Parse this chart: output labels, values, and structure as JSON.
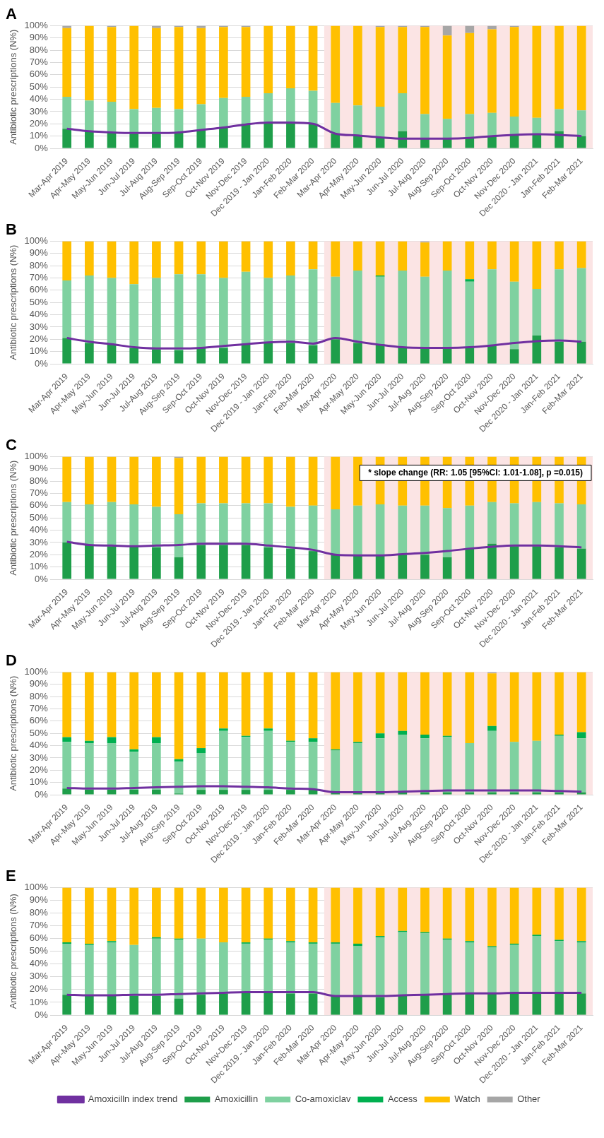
{
  "chart_data": [
    {
      "type": "bar",
      "title": "A",
      "ylabel": "Antibiotic prescriptions (N%)",
      "stacked": true,
      "grid": "y",
      "legend": false,
      "marker": "none",
      "categories": [
        "Mar-Apr 2019",
        "Apr-May 2019",
        "May-Jun 2019",
        "Jun-Jul 2019",
        "Jul-Aug 2019",
        "Aug-Sep 2019",
        "Sep-Oct 2019",
        "Oct-Nov 2019",
        "Nov-Dec 2019",
        "Dec 2019 - Jan 2020",
        "Jan-Feb 2020",
        "Feb-Mar 2020",
        "Mar-Apr 2020",
        "Apr-May 2020",
        "May-Jun 2020",
        "Jun-Jul 2020",
        "Jul-Aug 2020",
        "Aug-Sep 2020",
        "Sep-Oct 2020",
        "Oct-Nov 2020",
        "Nov-Dec 2020",
        "Dec 2020 - Jan 2021",
        "Jan-Feb 2021",
        "Feb-Mar 2021"
      ],
      "ylim": [
        0,
        100
      ],
      "yticks": [
        {
          "value": 0,
          "label": "0%"
        },
        {
          "value": 10,
          "label": "10%"
        },
        {
          "value": 20,
          "label": "20%"
        },
        {
          "value": 30,
          "label": "30%"
        },
        {
          "value": 40,
          "label": "40%"
        },
        {
          "value": 50,
          "label": "50%"
        },
        {
          "value": 60,
          "label": "60%"
        },
        {
          "value": 70,
          "label": "70%"
        },
        {
          "value": 80,
          "label": "80%"
        },
        {
          "value": 90,
          "label": "90%"
        },
        {
          "value": 100,
          "label": "100%"
        }
      ],
      "bands": [
        {
          "axis": "x",
          "from": "Mar-Apr 2020",
          "to": "Feb-Mar 2021",
          "color": "#fbe4e4"
        }
      ],
      "series": [
        {
          "color": "#1e9e4a",
          "values": [
            16,
            14,
            13,
            12,
            12,
            13,
            15,
            17,
            20,
            21,
            21,
            20,
            12,
            10,
            9,
            14,
            8,
            8,
            9,
            10,
            11,
            12,
            14,
            10
          ]
        },
        {
          "color": "#7fd1a0",
          "values": [
            26,
            25,
            25,
            20,
            21,
            19,
            21,
            24,
            22,
            24,
            28,
            27,
            25,
            25,
            25,
            31,
            20,
            16,
            19,
            19,
            15,
            13,
            18,
            21
          ]
        },
        {
          "color": "#ffc000",
          "values": [
            56,
            61,
            61,
            68,
            65,
            67,
            62,
            58,
            57,
            55,
            51,
            53,
            63,
            65,
            65,
            54,
            71,
            68,
            66,
            68,
            73,
            75,
            68,
            69
          ]
        },
        {
          "color": "#a6a6a6",
          "values": [
            2,
            0,
            1,
            0,
            2,
            1,
            2,
            1,
            1,
            0,
            0,
            0,
            0,
            0,
            1,
            1,
            1,
            8,
            6,
            3,
            1,
            0,
            0,
            0
          ]
        },
        {
          "type": "line",
          "color": "#7030a0",
          "values": [
            16,
            14,
            13,
            12.5,
            12.5,
            13,
            15,
            17,
            19.5,
            21,
            21,
            20,
            12,
            10.5,
            9,
            8,
            8,
            8,
            8.5,
            10,
            11,
            11.5,
            11,
            10
          ]
        }
      ]
    },
    {
      "type": "bar",
      "title": "B",
      "ylabel": "Antibiotic prescriptions (N%)",
      "stacked": true,
      "grid": "y",
      "legend": false,
      "marker": "none",
      "categories": [
        "Mar-Apr 2019",
        "Apr-May 2019",
        "May-Jun 2019",
        "Jun-Jul 2019",
        "Jul-Aug 2019",
        "Aug-Sep 2019",
        "Sep-Oct 2019",
        "Oct-Nov 2019",
        "Nov-Dec 2019",
        "Dec 2019 - Jan 2020",
        "Jan-Feb 2020",
        "Feb-Mar 2020",
        "Mar-Apr 2020",
        "Apr-May 2020",
        "May-Jun 2020",
        "Jun-Jul 2020",
        "Jul-Aug 2020",
        "Aug-Sep 2020",
        "Sep-Oct 2020",
        "Oct-Nov 2020",
        "Nov-Dec 2020",
        "Dec 2020 - Jan 2021",
        "Jan-Feb 2021",
        "Feb-Mar 2021"
      ],
      "ylim": [
        0,
        100
      ],
      "yticks": [
        {
          "value": 0,
          "label": "0%"
        },
        {
          "value": 10,
          "label": "10%"
        },
        {
          "value": 20,
          "label": "20%"
        },
        {
          "value": 30,
          "label": "30%"
        },
        {
          "value": 40,
          "label": "40%"
        },
        {
          "value": 50,
          "label": "50%"
        },
        {
          "value": 60,
          "label": "60%"
        },
        {
          "value": 70,
          "label": "70%"
        },
        {
          "value": 80,
          "label": "80%"
        },
        {
          "value": 90,
          "label": "90%"
        },
        {
          "value": 100,
          "label": "100%"
        }
      ],
      "bands": [
        {
          "axis": "x",
          "from": "Mar-Apr 2020",
          "to": "Feb-Mar 2021",
          "color": "#fbe4e4"
        }
      ],
      "series": [
        {
          "color": "#1e9e4a",
          "values": [
            21,
            17,
            16,
            13,
            12,
            11,
            13,
            13,
            16,
            17,
            17,
            15,
            20,
            17,
            16,
            14,
            13,
            13,
            13,
            15,
            12,
            23,
            18,
            18
          ]
        },
        {
          "color": "#7fd1a0",
          "values": [
            47,
            55,
            54,
            52,
            58,
            62,
            60,
            57,
            59,
            53,
            55,
            62,
            51,
            59,
            55,
            62,
            58,
            63,
            54,
            62,
            55,
            38,
            59,
            60
          ]
        },
        {
          "color": "#00b050",
          "values": [
            0,
            0,
            0,
            0,
            0,
            0,
            0,
            0,
            0,
            0,
            0,
            0,
            0,
            0,
            1,
            0,
            0,
            0,
            2,
            0,
            0,
            0,
            0,
            0
          ]
        },
        {
          "color": "#ffc000",
          "values": [
            32,
            28,
            30,
            35,
            30,
            27,
            27,
            30,
            25,
            30,
            28,
            23,
            29,
            24,
            28,
            24,
            28,
            24,
            31,
            23,
            33,
            39,
            23,
            22
          ]
        },
        {
          "color": "#a6a6a6",
          "values": [
            0,
            0,
            0,
            0,
            0,
            0,
            0,
            0,
            0,
            0,
            0,
            0,
            0,
            0,
            0,
            0,
            1,
            0,
            0,
            0,
            0,
            0,
            0,
            0
          ]
        },
        {
          "type": "line",
          "color": "#7030a0",
          "values": [
            21,
            18,
            16,
            13.5,
            12.5,
            12.5,
            13,
            14.5,
            16,
            17.5,
            18,
            16.5,
            21,
            18,
            15.5,
            13.5,
            13,
            13,
            13.5,
            15,
            17,
            18.5,
            19,
            18
          ]
        }
      ]
    },
    {
      "type": "bar",
      "title": "C",
      "ylabel": "Antibiotic prescriptions (N%)",
      "stacked": true,
      "grid": "y",
      "legend": false,
      "marker": "none",
      "categories": [
        "Mar-Apr 2019",
        "Apr-May 2019",
        "May-Jun 2019",
        "Jun-Jul 2019",
        "Jul-Aug 2019",
        "Aug-Sep 2019",
        "Sep-Oct 2019",
        "Oct-Nov 2019",
        "Nov-Dec 2019",
        "Dec 2019 - Jan 2020",
        "Jan-Feb 2020",
        "Feb-Mar 2020",
        "Mar-Apr 2020",
        "Apr-May 2020",
        "May-Jun 2020",
        "Jun-Jul 2020",
        "Jul-Aug 2020",
        "Aug-Sep 2020",
        "Sep-Oct 2020",
        "Oct-Nov 2020",
        "Nov-Dec 2020",
        "Dec 2020 - Jan 2021",
        "Jan-Feb 2021",
        "Feb-Mar 2021"
      ],
      "ylim": [
        0,
        100
      ],
      "yticks": [
        {
          "value": 0,
          "label": "0%"
        },
        {
          "value": 10,
          "label": "10%"
        },
        {
          "value": 20,
          "label": "20%"
        },
        {
          "value": 30,
          "label": "30%"
        },
        {
          "value": 40,
          "label": "40%"
        },
        {
          "value": 50,
          "label": "50%"
        },
        {
          "value": 60,
          "label": "60%"
        },
        {
          "value": 70,
          "label": "70%"
        },
        {
          "value": 80,
          "label": "80%"
        },
        {
          "value": 90,
          "label": "90%"
        },
        {
          "value": 100,
          "label": "100%"
        }
      ],
      "bands": [
        {
          "axis": "x",
          "from": "Mar-Apr 2020",
          "to": "Feb-Mar 2021",
          "color": "#fbe4e4"
        }
      ],
      "annotations": [
        "* slope change (RR: 1.05 [95%CI: 1.01-1.08], p =0.015)"
      ],
      "series": [
        {
          "color": "#1e9e4a",
          "values": [
            30,
            28,
            27,
            27,
            26,
            18,
            28,
            28,
            28,
            26,
            25,
            23,
            20,
            20,
            20,
            20,
            20,
            18,
            25,
            29,
            27,
            27,
            26,
            25
          ]
        },
        {
          "color": "#7fd1a0",
          "values": [
            33,
            33,
            36,
            34,
            33,
            35,
            34,
            34,
            34,
            36,
            34,
            37,
            37,
            40,
            41,
            40,
            40,
            40,
            35,
            34,
            35,
            36,
            36,
            36
          ]
        },
        {
          "color": "#ffc000",
          "values": [
            37,
            39,
            37,
            39,
            41,
            46,
            38,
            38,
            38,
            38,
            41,
            40,
            43,
            40,
            39,
            40,
            40,
            42,
            40,
            37,
            38,
            37,
            38,
            39
          ]
        },
        {
          "color": "#a6a6a6",
          "values": [
            0,
            0,
            0,
            0,
            0,
            1,
            0,
            0,
            0,
            0,
            0,
            0,
            0,
            0,
            0,
            0,
            0,
            0,
            0,
            0,
            0,
            0,
            0,
            0
          ]
        },
        {
          "type": "line",
          "color": "#7030a0",
          "values": [
            30.5,
            28,
            27.5,
            27,
            27.5,
            28,
            29,
            29,
            29,
            27.5,
            26,
            24,
            20,
            19.5,
            19.5,
            20.5,
            21.5,
            23,
            25,
            26.5,
            27.5,
            27.5,
            27,
            26
          ]
        }
      ]
    },
    {
      "type": "bar",
      "title": "D",
      "ylabel": "Antibiotic prescriptions (N%)",
      "stacked": true,
      "grid": "y",
      "legend": false,
      "marker": "none",
      "categories": [
        "Mar-Apr 2019",
        "Apr-May 2019",
        "May-Jun 2019",
        "Jun-Jul 2019",
        "Jul-Aug 2019",
        "Aug-Sep 2019",
        "Sep-Oct 2019",
        "Oct-Nov 2019",
        "Nov-Dec 2019",
        "Dec 2019 - Jan 2020",
        "Jan-Feb 2020",
        "Feb-Mar 2020",
        "Mar-Apr 2020",
        "Apr-May 2020",
        "May-Jun 2020",
        "Jun-Jul 2020",
        "Jul-Aug 2020",
        "Aug-Sep 2020",
        "Sep-Oct 2020",
        "Oct-Nov 2020",
        "Nov-Dec 2020",
        "Dec 2020 - Jan 2021",
        "Jan-Feb 2021",
        "Feb-Mar 2021"
      ],
      "ylim": [
        0,
        100
      ],
      "yticks": [
        {
          "value": 0,
          "label": "0%"
        },
        {
          "value": 10,
          "label": "10%"
        },
        {
          "value": 20,
          "label": "20%"
        },
        {
          "value": 30,
          "label": "30%"
        },
        {
          "value": 40,
          "label": "40%"
        },
        {
          "value": 50,
          "label": "50%"
        },
        {
          "value": 60,
          "label": "60%"
        },
        {
          "value": 70,
          "label": "70%"
        },
        {
          "value": 80,
          "label": "80%"
        },
        {
          "value": 90,
          "label": "90%"
        },
        {
          "value": 100,
          "label": "100%"
        }
      ],
      "bands": [
        {
          "axis": "x",
          "from": "Mar-Apr 2020",
          "to": "Feb-Mar 2021",
          "color": "#fbe4e4"
        }
      ],
      "series": [
        {
          "color": "#1e9e4a",
          "values": [
            5,
            4,
            4,
            4,
            4,
            1,
            4,
            4,
            4,
            4,
            4,
            4,
            2,
            2,
            2,
            2,
            2,
            2,
            2,
            2,
            2,
            2,
            2,
            2
          ]
        },
        {
          "color": "#7fd1a0",
          "values": [
            38,
            38,
            38,
            31,
            38,
            26,
            30,
            48,
            43,
            48,
            39,
            39,
            34,
            40,
            44,
            47,
            44,
            45,
            40,
            50,
            41,
            42,
            46,
            44
          ]
        },
        {
          "color": "#00b050",
          "values": [
            4,
            2,
            5,
            2,
            5,
            2,
            4,
            2,
            1,
            2,
            1,
            3,
            1,
            1,
            4,
            3,
            3,
            1,
            0,
            4,
            0,
            0,
            1,
            5
          ]
        },
        {
          "color": "#ffc000",
          "values": [
            53,
            56,
            53,
            63,
            53,
            71,
            62,
            46,
            52,
            46,
            56,
            54,
            63,
            57,
            50,
            48,
            51,
            52,
            58,
            43,
            57,
            56,
            51,
            49
          ]
        },
        {
          "color": "#a6a6a6",
          "values": [
            0,
            0,
            0,
            0,
            0,
            0,
            0,
            0,
            0,
            0,
            0,
            0,
            0,
            0,
            0,
            0,
            0,
            0,
            0,
            1,
            0,
            0,
            0,
            0
          ]
        },
        {
          "type": "line",
          "color": "#7030a0",
          "values": [
            5.5,
            5,
            5,
            5.5,
            6,
            6.5,
            7,
            7,
            6.5,
            6,
            5,
            4.5,
            2,
            2,
            2,
            2.5,
            3,
            3.5,
            3.5,
            3.5,
            3.5,
            3.5,
            3,
            2.5
          ]
        }
      ]
    },
    {
      "type": "bar",
      "title": "E",
      "ylabel": "Antibiotic prescriptions (N%)",
      "stacked": true,
      "grid": "y",
      "legend": "bottom",
      "marker": "none",
      "categories": [
        "Mar-Apr 2019",
        "Apr-May 2019",
        "May-Jun 2019",
        "Jun-Jul 2019",
        "Jul-Aug 2019",
        "Aug-Sep 2019",
        "Sep-Oct 2019",
        "Oct-Nov 2019",
        "Nov-Dec 2019",
        "Dec 2019 - Jan 2020",
        "Jan-Feb 2020",
        "Feb-Mar 2020",
        "Mar-Apr 2020",
        "Apr-May 2020",
        "May-Jun 2020",
        "Jun-Jul 2020",
        "Jul-Aug 2020",
        "Aug-Sep 2020",
        "Sep-Oct 2020",
        "Oct-Nov 2020",
        "Nov-Dec 2020",
        "Dec 2020 - Jan 2021",
        "Jan-Feb 2021",
        "Feb-Mar 2021"
      ],
      "ylim": [
        0,
        100
      ],
      "yticks": [
        {
          "value": 0,
          "label": "0%"
        },
        {
          "value": 10,
          "label": "10%"
        },
        {
          "value": 20,
          "label": "20%"
        },
        {
          "value": 30,
          "label": "30%"
        },
        {
          "value": 40,
          "label": "40%"
        },
        {
          "value": 50,
          "label": "50%"
        },
        {
          "value": 60,
          "label": "60%"
        },
        {
          "value": 70,
          "label": "70%"
        },
        {
          "value": 80,
          "label": "80%"
        },
        {
          "value": 90,
          "label": "90%"
        },
        {
          "value": 100,
          "label": "100%"
        }
      ],
      "bands": [
        {
          "axis": "x",
          "from": "Mar-Apr 2020",
          "to": "Feb-Mar 2021",
          "color": "#fbe4e4"
        }
      ],
      "series": [
        {
          "name": "Amoxicillin",
          "color": "#1e9e4a",
          "values": [
            16,
            15,
            15,
            15,
            15,
            13,
            16,
            17,
            18,
            18,
            17,
            17,
            15,
            15,
            14,
            15,
            16,
            16,
            17,
            17,
            17,
            17,
            17,
            17
          ]
        },
        {
          "name": "Co-amoxiclav",
          "color": "#7fd1a0",
          "values": [
            40,
            40,
            42,
            40,
            45,
            46,
            44,
            40,
            38,
            41,
            40,
            39,
            41,
            39,
            47,
            50,
            48,
            43,
            40,
            36,
            38,
            45,
            41,
            40
          ]
        },
        {
          "name": "Access",
          "color": "#00b050",
          "values": [
            1,
            1,
            1,
            0,
            1,
            1,
            0,
            0,
            1,
            1,
            1,
            1,
            1,
            2,
            1,
            1,
            1,
            1,
            1,
            1,
            1,
            1,
            1,
            1
          ]
        },
        {
          "name": "Watch",
          "color": "#ffc000",
          "values": [
            43,
            44,
            42,
            45,
            39,
            40,
            40,
            43,
            43,
            40,
            42,
            43,
            43,
            44,
            38,
            34,
            35,
            40,
            42,
            46,
            44,
            37,
            41,
            42
          ]
        },
        {
          "name": "Other",
          "color": "#a6a6a6",
          "values": [
            0,
            0,
            0,
            0,
            0,
            0,
            0,
            0,
            0,
            0,
            0,
            0,
            0,
            0,
            0,
            0,
            0,
            0,
            0,
            0,
            0,
            0,
            0,
            0
          ]
        },
        {
          "name": "Amoxicilln index trend",
          "type": "line",
          "color": "#7030a0",
          "values": [
            16,
            15.5,
            15.5,
            16,
            16,
            16.5,
            17,
            17.5,
            18,
            18,
            18,
            18,
            15,
            15,
            15,
            15.5,
            16,
            16.5,
            17,
            17,
            17.5,
            17.5,
            17.5,
            17.5
          ]
        }
      ]
    }
  ]
}
